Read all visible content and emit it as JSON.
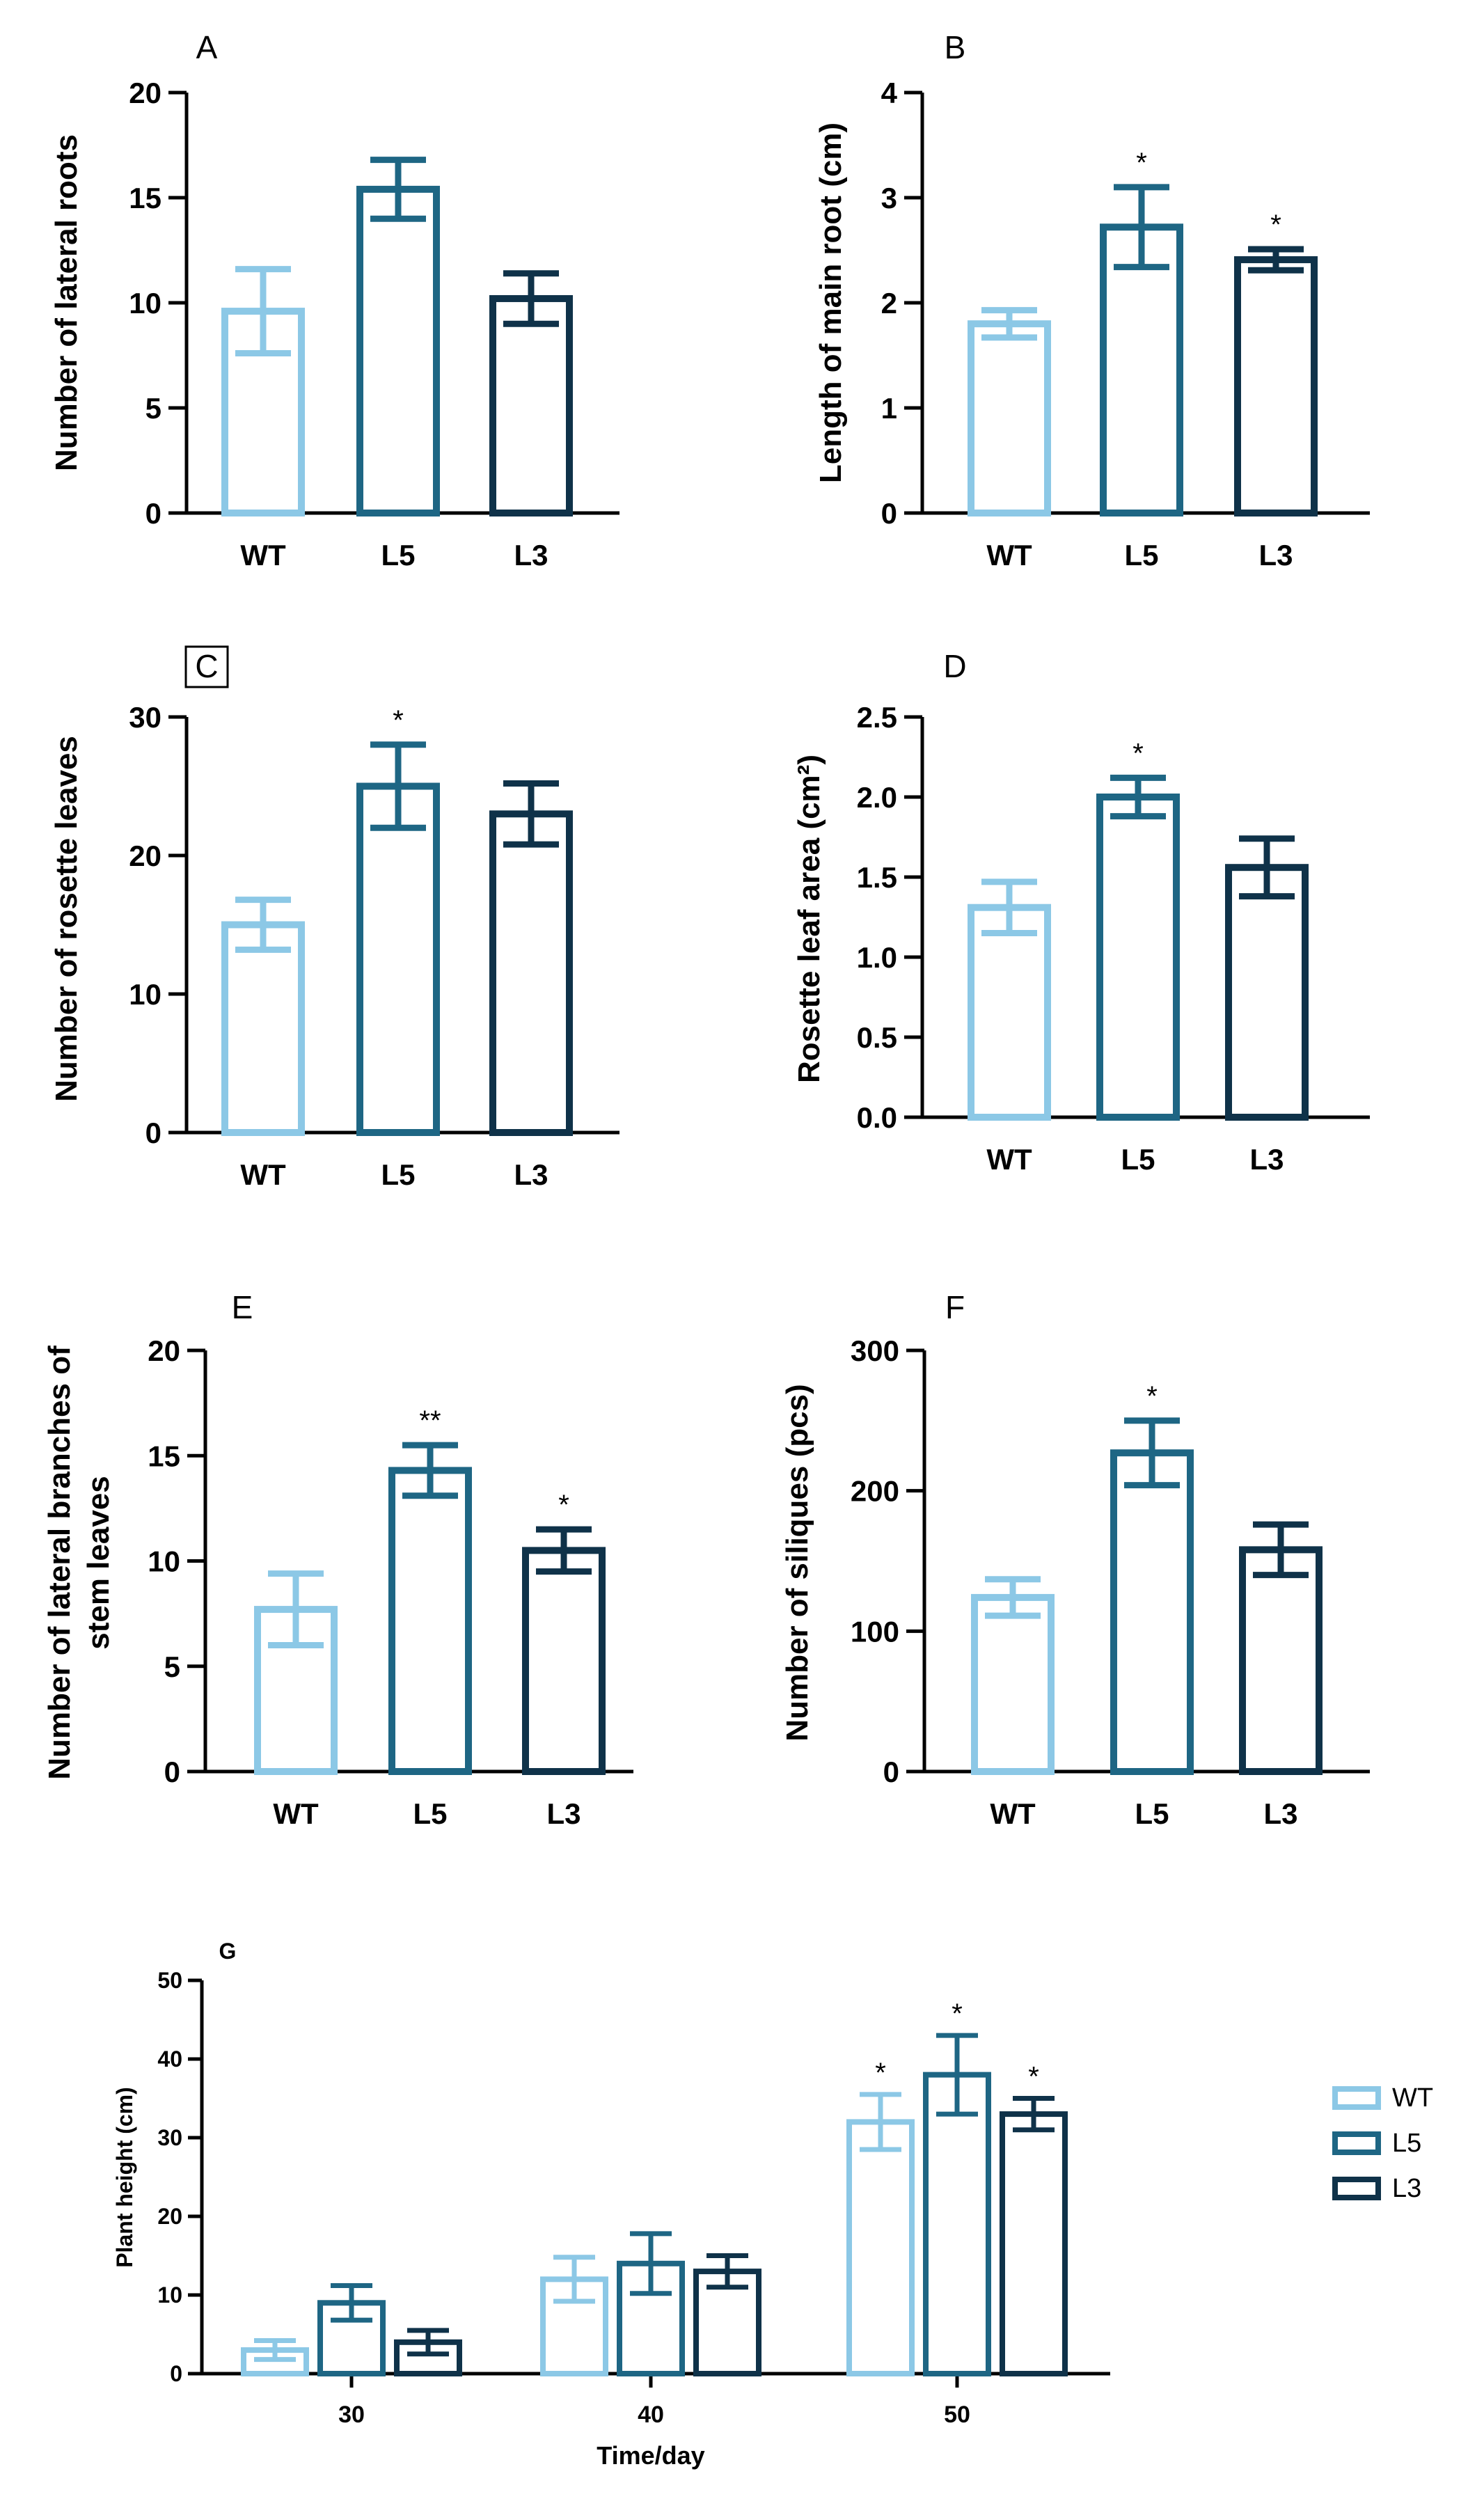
{
  "colors": {
    "WT": "#8cc8e6",
    "L5": "#1e6684",
    "L3": "#0f3249"
  },
  "chart_data": [
    {
      "id": "A",
      "panel_label": "A",
      "type": "bar",
      "categories": [
        "WT",
        "L5",
        "L3"
      ],
      "values": [
        9.6,
        15.4,
        10.2
      ],
      "errors": [
        2.0,
        1.4,
        1.2
      ],
      "significance": [
        "",
        "",
        ""
      ],
      "ylabel": "Number of lateral roots",
      "ylim": [
        0,
        20
      ],
      "yticks": [
        0,
        5,
        10,
        15,
        20
      ]
    },
    {
      "id": "B",
      "panel_label": "B",
      "type": "bar",
      "categories": [
        "WT",
        "L5",
        "L3"
      ],
      "values": [
        1.8,
        2.72,
        2.41
      ],
      "errors": [
        0.13,
        0.38,
        0.1
      ],
      "significance": [
        "",
        "*",
        "*"
      ],
      "ylabel": "Length of main root (cm)",
      "ylim": [
        0,
        4
      ],
      "yticks": [
        0,
        1,
        2,
        3,
        4
      ]
    },
    {
      "id": "C",
      "panel_label": "C",
      "type": "bar",
      "categories": [
        "WT",
        "L5",
        "L3"
      ],
      "values": [
        15.0,
        25.0,
        23.0
      ],
      "errors": [
        1.8,
        3.0,
        2.2
      ],
      "significance": [
        "",
        "*",
        ""
      ],
      "ylabel": "Number of rosette leaves",
      "ylim": [
        0,
        30
      ],
      "yticks": [
        0,
        10,
        20,
        30
      ]
    },
    {
      "id": "D",
      "panel_label": "D",
      "type": "bar",
      "categories": [
        "WT",
        "L5",
        "L3"
      ],
      "values": [
        1.31,
        2.0,
        1.56
      ],
      "errors": [
        0.16,
        0.12,
        0.18
      ],
      "significance": [
        "",
        "*",
        ""
      ],
      "ylabel": "Rosette leaf area (cm²)",
      "ylim": [
        0,
        2.5
      ],
      "yticks": [
        "0.0",
        "0.5",
        "1.0",
        "1.5",
        "2.0",
        "2.5"
      ]
    },
    {
      "id": "E",
      "panel_label": "E",
      "type": "bar",
      "categories": [
        "WT",
        "L5",
        "L3"
      ],
      "values": [
        7.7,
        14.3,
        10.5
      ],
      "errors": [
        1.7,
        1.2,
        1.0
      ],
      "significance": [
        "",
        "**",
        "*"
      ],
      "ylabel": "Number of lateral branches of stem leaves",
      "ylim": [
        0,
        20
      ],
      "yticks": [
        0,
        5,
        10,
        15,
        20
      ]
    },
    {
      "id": "F",
      "panel_label": "F",
      "type": "bar",
      "categories": [
        "WT",
        "L5",
        "L3"
      ],
      "values": [
        124,
        227,
        158
      ],
      "errors": [
        13,
        23,
        18
      ],
      "significance": [
        "",
        "*",
        ""
      ],
      "ylabel": "Number of siliques (pcs)",
      "ylim": [
        0,
        300
      ],
      "yticks": [
        0,
        100,
        200,
        300
      ]
    },
    {
      "id": "G",
      "panel_label": "G",
      "type": "bar",
      "categories": [
        "30",
        "40",
        "50"
      ],
      "series": [
        {
          "name": "WT",
          "values": [
            3,
            12,
            32
          ],
          "errors": [
            1.2,
            2.8,
            3.5
          ],
          "significance": [
            "",
            "",
            "*"
          ]
        },
        {
          "name": "L5",
          "values": [
            9,
            14,
            38
          ],
          "errors": [
            2.2,
            3.8,
            5.0
          ],
          "significance": [
            "",
            "",
            "*"
          ]
        },
        {
          "name": "L3",
          "values": [
            4,
            13,
            33
          ],
          "errors": [
            1.5,
            2.0,
            2.0
          ],
          "significance": [
            "",
            "",
            "*"
          ]
        }
      ],
      "xlabel": "Time/day",
      "ylabel": "Plant height (cm)",
      "ylim": [
        0,
        50
      ],
      "yticks": [
        0,
        10,
        20,
        30,
        40,
        50
      ],
      "legend_position": "right"
    }
  ]
}
